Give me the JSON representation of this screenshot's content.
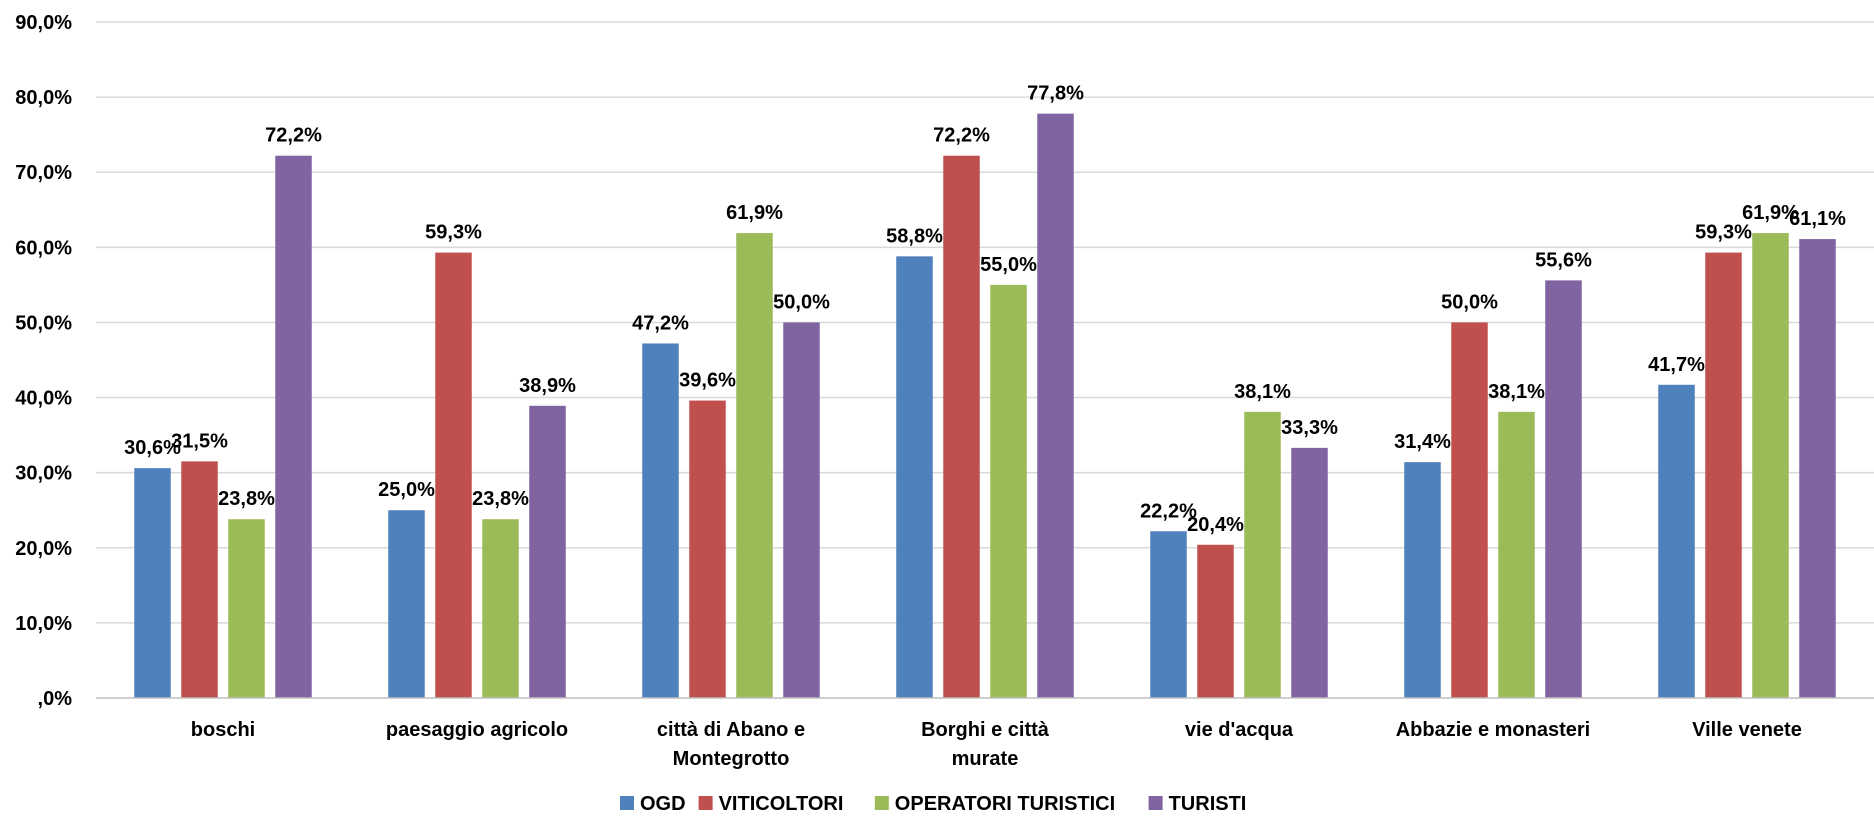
{
  "chart_data": {
    "type": "bar",
    "categories": [
      "boschi",
      "paesaggio agricolo",
      "città di Abano e Montegrotto",
      "Borghi e città murate",
      "vie d'acqua",
      "Abbazie e monasteri",
      "Ville venete"
    ],
    "series": [
      {
        "name": "OGD",
        "color": "#4F81BD",
        "values": [
          30.6,
          25.0,
          47.2,
          58.8,
          22.2,
          31.4,
          41.7
        ],
        "labels": [
          "30,6%",
          "25,0%",
          "47,2%",
          "58,8%",
          "22,2%",
          "31,4%",
          "41,7%"
        ]
      },
      {
        "name": "VITICOLTORI",
        "color": "#C0504D",
        "values": [
          31.5,
          59.3,
          39.6,
          72.2,
          20.4,
          50.0,
          59.3
        ],
        "labels": [
          "31,5%",
          "59,3%",
          "39,6%",
          "72,2%",
          "20,4%",
          "50,0%",
          "59,3%"
        ]
      },
      {
        "name": "OPERATORI TURISTICI",
        "color": "#9BBB59",
        "values": [
          23.8,
          23.8,
          61.9,
          55.0,
          38.1,
          38.1,
          61.9
        ],
        "labels": [
          "23,8%",
          "23,8%",
          "61,9%",
          "55,0%",
          "38,1%",
          "38,1%",
          "61,9%"
        ]
      },
      {
        "name": "TURISTI",
        "color": "#8064A2",
        "values": [
          72.2,
          38.9,
          50.0,
          77.8,
          33.3,
          55.6,
          61.1
        ],
        "labels": [
          "72,2%",
          "38,9%",
          "50,0%",
          "77,8%",
          "33,3%",
          "55,6%",
          "61,1%"
        ]
      }
    ],
    "ylim": [
      0,
      90
    ],
    "yticks": [
      0,
      10,
      20,
      30,
      40,
      50,
      60,
      70,
      80,
      90
    ],
    "ytick_labels": [
      ",0%",
      "10,0%",
      "20,0%",
      "30,0%",
      "40,0%",
      "50,0%",
      "60,0%",
      "70,0%",
      "80,0%",
      "90,0%"
    ],
    "grid": true,
    "legend": "bottom"
  }
}
